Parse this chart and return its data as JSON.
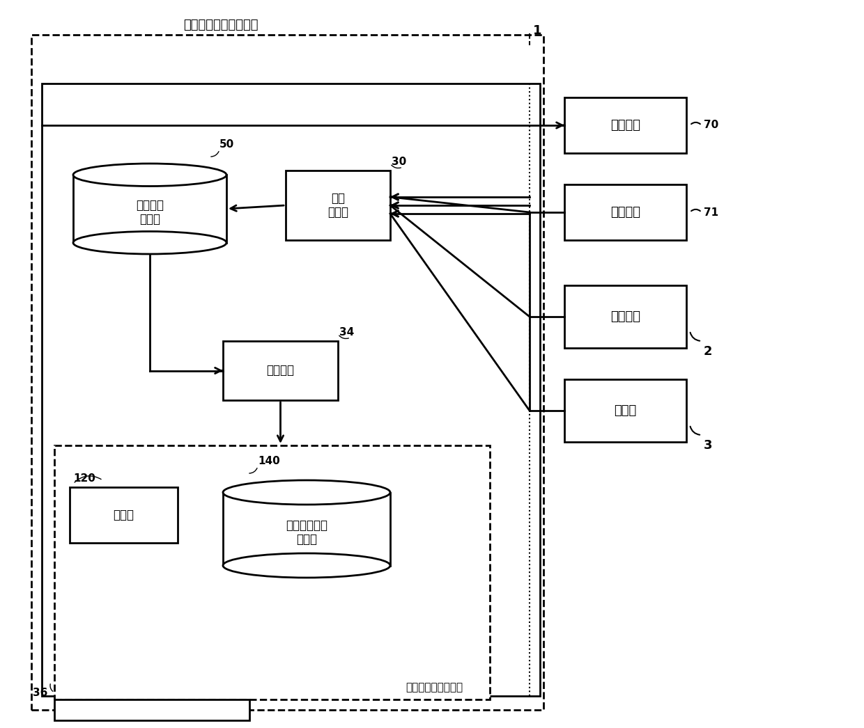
{
  "bg_color": "#ffffff",
  "title": "刀具安装异常检测装置",
  "detection_label": "刀具安装异常检测部",
  "label_display": "显示装置",
  "label_input": "输入装置",
  "label_machining": "加工中心",
  "label_sensor": "传感器",
  "label_data_acq": "数据\n取得部",
  "label_storage": "取得数据\n存储部",
  "label_preprocess": "预处理部",
  "label_estimate": "推定部",
  "label_normal_storage": "正常振动数据\n存储部",
  "ref_1": "1",
  "ref_2": "2",
  "ref_3": "3",
  "ref_30": "30",
  "ref_34": "34",
  "ref_36": "36",
  "ref_50": "50",
  "ref_70": "70",
  "ref_71": "71",
  "ref_120": "120",
  "ref_140": "140"
}
